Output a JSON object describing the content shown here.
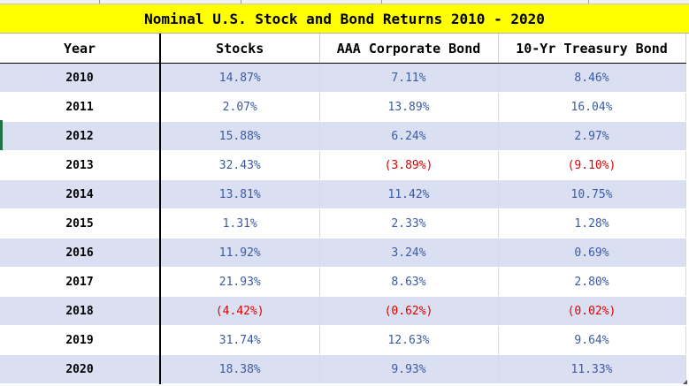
{
  "title": "Nominal U.S. Stock and Bond Returns 2010 - 2020",
  "headers": [
    "Year",
    "Stocks",
    "AAA Corporate Bond",
    "10-Yr Treasury Bond"
  ],
  "rows": [
    {
      "year": "2010",
      "stocks": "14.87%",
      "corporate": "7.11%",
      "treasury": "8.46%"
    },
    {
      "year": "2011",
      "stocks": "2.07%",
      "corporate": "13.89%",
      "treasury": "16.04%"
    },
    {
      "year": "2012",
      "stocks": "15.88%",
      "corporate": "6.24%",
      "treasury": "2.97%"
    },
    {
      "year": "2013",
      "stocks": "32.43%",
      "corporate": "(3.89%)",
      "treasury": "(9.10%)"
    },
    {
      "year": "2014",
      "stocks": "13.81%",
      "corporate": "11.42%",
      "treasury": "10.75%"
    },
    {
      "year": "2015",
      "stocks": "1.31%",
      "corporate": "2.33%",
      "treasury": "1.28%"
    },
    {
      "year": "2016",
      "stocks": "11.92%",
      "corporate": "3.24%",
      "treasury": "0.69%"
    },
    {
      "year": "2017",
      "stocks": "21.93%",
      "corporate": "8.63%",
      "treasury": "2.80%"
    },
    {
      "year": "2018",
      "stocks": "(4.42%)",
      "corporate": "(0.62%)",
      "treasury": "(0.02%)"
    },
    {
      "year": "2019",
      "stocks": "31.74%",
      "corporate": "12.63%",
      "treasury": "9.64%"
    },
    {
      "year": "2020",
      "stocks": "18.38%",
      "corporate": "9.93%",
      "treasury": "11.33%"
    }
  ],
  "colors": {
    "title_bg": "#ffff00",
    "band": "#dae0f1",
    "positive": "#3a5aa6",
    "negative": "#e00000"
  }
}
